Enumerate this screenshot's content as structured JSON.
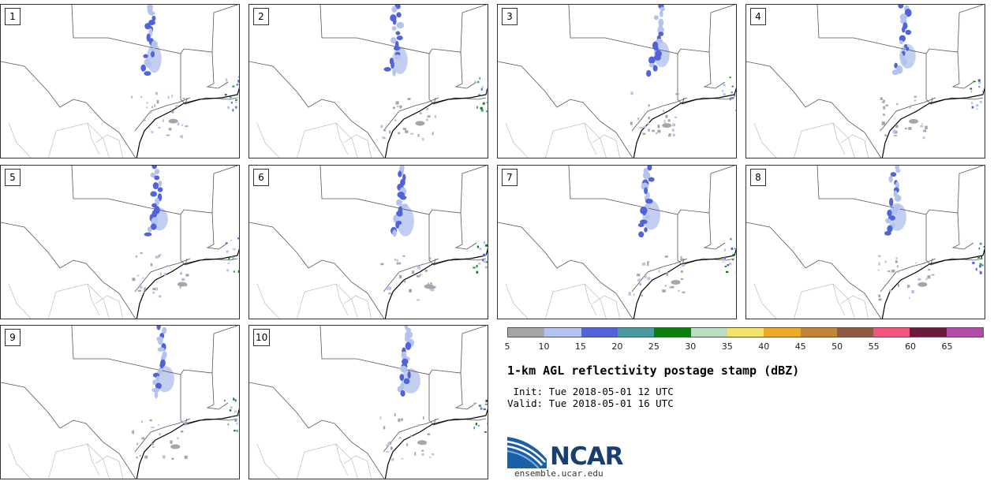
{
  "panels": [
    {
      "label": "1"
    },
    {
      "label": "2"
    },
    {
      "label": "3"
    },
    {
      "label": "4"
    },
    {
      "label": "5"
    },
    {
      "label": "6"
    },
    {
      "label": "7"
    },
    {
      "label": "8"
    },
    {
      "label": "9"
    },
    {
      "label": "10"
    }
  ],
  "colorbar": {
    "ticks": [
      "5",
      "10",
      "15",
      "20",
      "25",
      "30",
      "35",
      "40",
      "45",
      "50",
      "55",
      "60",
      "65"
    ],
    "colors": [
      "#a6a6a6",
      "#b4c3ee",
      "#5163d8",
      "#4a9aa0",
      "#08800a",
      "#b9dfc0",
      "#f3e26b",
      "#eeaa2a",
      "#c28436",
      "#8e5a41",
      "#f3547c",
      "#6b1a3c",
      "#b14ba9"
    ]
  },
  "title": "1-km AGL reflectivity postage stamp (dBZ)",
  "init": " Init: Tue 2018-05-01 12 UTC",
  "valid": "Valid: Tue 2018-05-01 16 UTC",
  "logo": {
    "text": "NCAR",
    "url": "ensemble.ucar.edu"
  }
}
